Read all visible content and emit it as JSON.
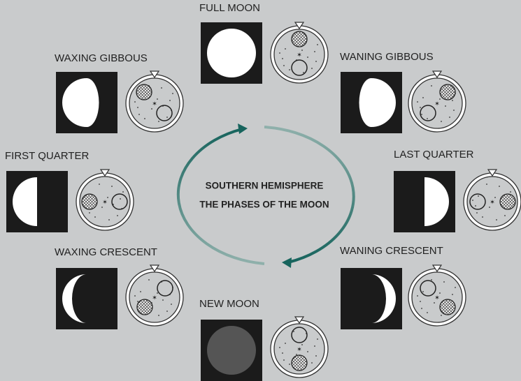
{
  "title": {
    "line1": "SOUTHERN HEMISPHERE",
    "line2": "THE PHASES OF THE MOON"
  },
  "phases": [
    {
      "label": "FULL MOON"
    },
    {
      "label": "WANING GIBBOUS"
    },
    {
      "label": "LAST QUARTER"
    },
    {
      "label": "WANING CRESCENT"
    },
    {
      "label": "NEW MOON"
    },
    {
      "label": "WAXING CRESCENT"
    },
    {
      "label": "FIRST QUARTER"
    },
    {
      "label": "WAXING GIBBOUS"
    }
  ]
}
